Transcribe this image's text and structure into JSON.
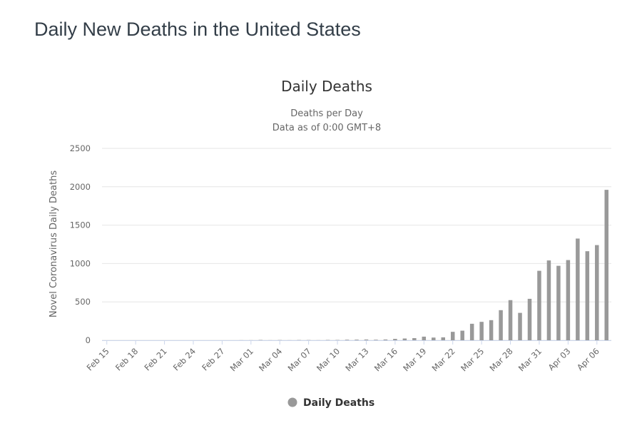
{
  "page": {
    "title": "Daily New Deaths in the United States"
  },
  "chart_data": {
    "type": "bar",
    "title": "Daily Deaths",
    "subtitle_lines": [
      "Deaths per Day",
      "Data as of 0:00 GMT+8"
    ],
    "xlabel": "",
    "ylabel": "Novel Coronavirus Daily Deaths",
    "ylim": [
      0,
      2500
    ],
    "yticks": [
      "0",
      "500",
      "1000",
      "1500",
      "2000",
      "2500"
    ],
    "xtick_labels": [
      "Feb 15",
      "Feb 18",
      "Feb 21",
      "Feb 24",
      "Feb 27",
      "Mar 01",
      "Mar 04",
      "Mar 07",
      "Mar 10",
      "Mar 13",
      "Mar 16",
      "Mar 19",
      "Mar 22",
      "Mar 25",
      "Mar 28",
      "Mar 31",
      "Apr 03",
      "Apr 06"
    ],
    "categories": [
      "Feb 15",
      "Feb 16",
      "Feb 17",
      "Feb 18",
      "Feb 19",
      "Feb 20",
      "Feb 21",
      "Feb 22",
      "Feb 23",
      "Feb 24",
      "Feb 25",
      "Feb 26",
      "Feb 27",
      "Feb 28",
      "Feb 29",
      "Mar 01",
      "Mar 02",
      "Mar 03",
      "Mar 04",
      "Mar 05",
      "Mar 06",
      "Mar 07",
      "Mar 08",
      "Mar 09",
      "Mar 10",
      "Mar 11",
      "Mar 12",
      "Mar 13",
      "Mar 14",
      "Mar 15",
      "Mar 16",
      "Mar 17",
      "Mar 18",
      "Mar 19",
      "Mar 20",
      "Mar 21",
      "Mar 22",
      "Mar 23",
      "Mar 24",
      "Mar 25",
      "Mar 26",
      "Mar 27",
      "Mar 28",
      "Mar 29",
      "Mar 30",
      "Mar 31",
      "Apr 01",
      "Apr 02",
      "Apr 03",
      "Apr 04",
      "Apr 05",
      "Apr 06",
      "Apr 07"
    ],
    "series": [
      {
        "name": "Daily Deaths",
        "color": "#999999",
        "values": [
          0,
          0,
          0,
          0,
          0,
          0,
          0,
          0,
          0,
          0,
          0,
          0,
          0,
          0,
          1,
          1,
          4,
          1,
          3,
          1,
          3,
          3,
          1,
          4,
          4,
          7,
          8,
          10,
          7,
          10,
          18,
          23,
          28,
          47,
          35,
          38,
          110,
          125,
          215,
          240,
          262,
          392,
          523,
          357,
          540,
          905,
          1040,
          970,
          1045,
          1325,
          1160,
          1240,
          1960
        ]
      }
    ],
    "legend": {
      "position": "bottom-center",
      "label": "Daily Deaths"
    },
    "grid": true
  }
}
